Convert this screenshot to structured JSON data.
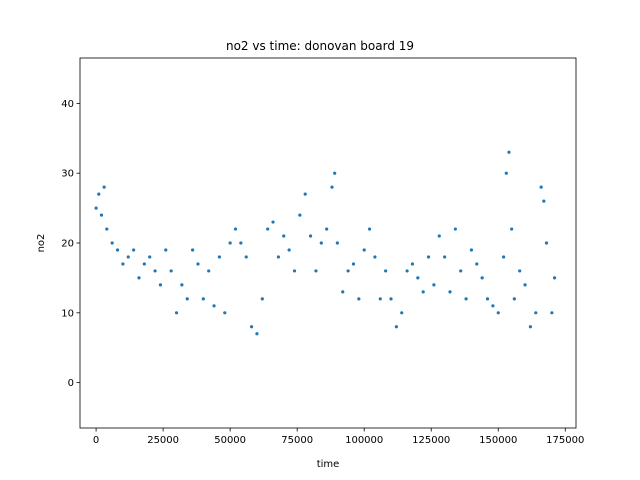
{
  "chart_data": {
    "type": "scatter",
    "title": "no2 vs time: donovan board 19",
    "xlabel": "time",
    "ylabel": "no2",
    "xlim": [
      -6000,
      179000
    ],
    "ylim": [
      -6.5,
      46.5
    ],
    "xticks": [
      0,
      25000,
      50000,
      75000,
      100000,
      125000,
      150000,
      175000
    ],
    "xtick_labels": [
      "0",
      "25000",
      "50000",
      "75000",
      "100000",
      "125000",
      "150000",
      "175000"
    ],
    "yticks": [
      0,
      10,
      20,
      30,
      40
    ],
    "ytick_labels": [
      "0",
      "10",
      "20",
      "30",
      "40"
    ],
    "grid": false,
    "marker_color": "#1f77b4",
    "series": [
      {
        "x": [
          0,
          1000,
          2000,
          3000,
          4000,
          6000,
          8000,
          10000,
          12000,
          14000,
          16000,
          18000,
          20000,
          22000,
          24000,
          26000,
          28000,
          30000,
          32000,
          34000,
          36000,
          38000,
          40000,
          42000,
          44000,
          46000,
          48000,
          50000,
          52000,
          54000,
          56000,
          58000,
          60000,
          62000,
          64000,
          66000,
          68000,
          70000,
          72000,
          74000,
          76000,
          78000,
          80000,
          82000,
          84000,
          86000,
          88000,
          89000,
          90000,
          92000,
          94000,
          96000,
          98000,
          100000,
          102000,
          104000,
          106000,
          108000,
          110000,
          112000,
          114000,
          116000,
          118000,
          120000,
          122000,
          124000,
          126000,
          128000,
          130000,
          132000,
          134000,
          136000,
          138000,
          140000,
          142000,
          144000,
          146000,
          148000,
          150000,
          152000,
          153000,
          154000,
          155000,
          156000,
          158000,
          160000,
          162000,
          164000,
          166000,
          167000,
          168000,
          170000,
          171000
        ],
        "y": [
          25,
          27,
          24,
          28,
          22,
          20,
          19,
          17,
          18,
          19,
          15,
          17,
          18,
          16,
          14,
          19,
          16,
          10,
          14,
          12,
          19,
          17,
          12,
          16,
          11,
          18,
          10,
          20,
          22,
          20,
          18,
          8,
          7,
          12,
          22,
          23,
          18,
          21,
          19,
          16,
          24,
          27,
          21,
          16,
          20,
          22,
          28,
          30,
          20,
          13,
          16,
          17,
          12,
          19,
          22,
          18,
          12,
          16,
          12,
          8,
          10,
          16,
          17,
          15,
          13,
          18,
          14,
          21,
          18,
          13,
          22,
          16,
          12,
          19,
          17,
          15,
          12,
          11,
          10,
          18,
          30,
          33,
          22,
          12,
          16,
          14,
          8,
          10,
          28,
          26,
          20,
          10,
          15
        ]
      }
    ]
  }
}
